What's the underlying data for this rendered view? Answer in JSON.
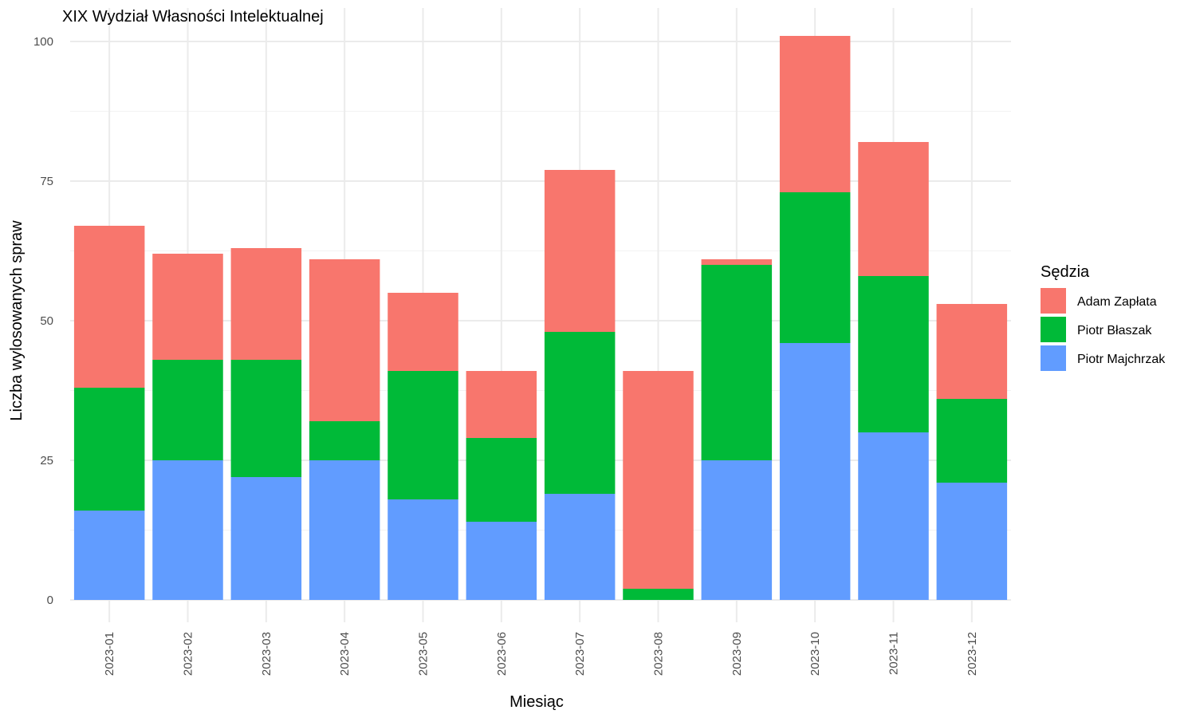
{
  "chart_data": {
    "type": "bar",
    "stacked": true,
    "title": "XIX Wydział Własności Intelektualnej",
    "xlabel": "Miesiąc",
    "ylabel": "Liczba wylosowanych spraw",
    "categories": [
      "2023-01",
      "2023-02",
      "2023-03",
      "2023-04",
      "2023-05",
      "2023-06",
      "2023-07",
      "2023-08",
      "2023-09",
      "2023-10",
      "2023-11",
      "2023-12"
    ],
    "series": [
      {
        "name": "Piotr Majchrzak",
        "color": "#619CFF",
        "values": [
          16,
          25,
          22,
          25,
          18,
          14,
          19,
          0,
          25,
          46,
          30,
          21
        ]
      },
      {
        "name": "Piotr Błaszak",
        "color": "#00BA38",
        "values": [
          22,
          18,
          21,
          7,
          23,
          15,
          29,
          2,
          35,
          27,
          28,
          15
        ]
      },
      {
        "name": "Adam Zapłata",
        "color": "#F8766D",
        "values": [
          29,
          19,
          20,
          29,
          14,
          12,
          29,
          39,
          1,
          28,
          24,
          17
        ]
      }
    ],
    "ylim": [
      -4,
      106
    ],
    "yticks": [
      0,
      25,
      50,
      75,
      100
    ],
    "grid": true,
    "legend": {
      "title": "Sędzia",
      "position": "right",
      "order": [
        "Adam Zapłata",
        "Piotr Błaszak",
        "Piotr Majchrzak"
      ]
    }
  }
}
